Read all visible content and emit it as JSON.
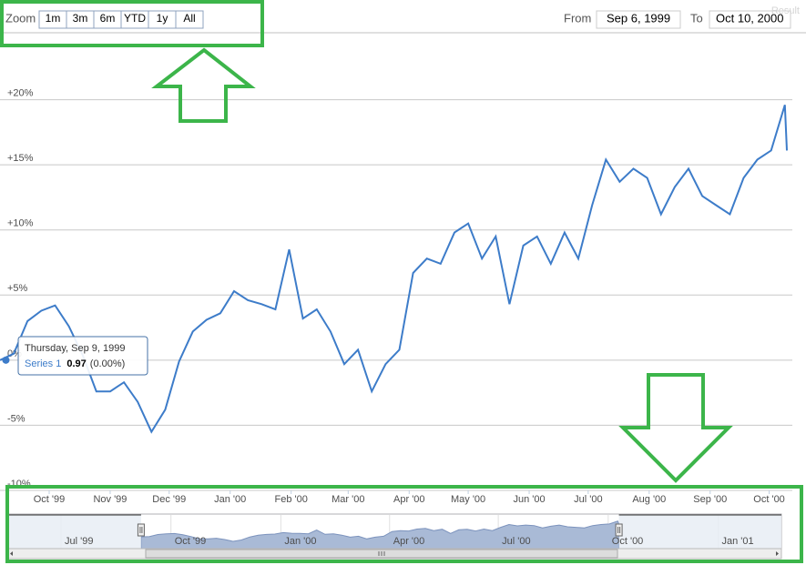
{
  "watermark": "Result",
  "range_selector": {
    "zoom_label": "Zoom",
    "buttons": [
      "1m",
      "3m",
      "6m",
      "YTD",
      "1y",
      "All"
    ],
    "from_label": "From",
    "from": "Sep 6, 1999",
    "to_label": "To",
    "to": "Oct 10, 2000"
  },
  "chart_data": {
    "type": "line",
    "x": [
      "1999-09-06",
      "1999-09-13",
      "1999-09-20",
      "1999-09-27",
      "1999-10-04",
      "1999-10-11",
      "1999-10-18",
      "1999-10-25",
      "1999-11-01",
      "1999-11-08",
      "1999-11-15",
      "1999-11-22",
      "1999-11-29",
      "1999-12-06",
      "1999-12-13",
      "1999-12-20",
      "1999-12-27",
      "2000-01-03",
      "2000-01-10",
      "2000-01-17",
      "2000-01-24",
      "2000-01-31",
      "2000-02-07",
      "2000-02-14",
      "2000-02-21",
      "2000-02-28",
      "2000-03-06",
      "2000-03-13",
      "2000-03-20",
      "2000-03-27",
      "2000-04-03",
      "2000-04-10",
      "2000-04-17",
      "2000-04-24",
      "2000-05-01",
      "2000-05-08",
      "2000-05-15",
      "2000-05-22",
      "2000-05-29",
      "2000-06-05",
      "2000-06-12",
      "2000-06-19",
      "2000-06-26",
      "2000-07-03",
      "2000-07-10",
      "2000-07-17",
      "2000-07-24",
      "2000-07-31",
      "2000-08-07",
      "2000-08-14",
      "2000-08-21",
      "2000-08-28",
      "2000-09-04",
      "2000-09-11",
      "2000-09-18",
      "2000-09-25",
      "2000-10-02",
      "2000-10-09",
      "2000-10-10"
    ],
    "series": [
      {
        "name": "Series 1",
        "color": "#3d7cc9",
        "values": [
          0,
          0.5,
          3,
          3.8,
          4.2,
          2.6,
          0.4,
          -2.4,
          -2.4,
          -1.7,
          -3.2,
          -5.5,
          -3.8,
          -0.1,
          2.2,
          3.1,
          3.6,
          5.3,
          4.6,
          4.3,
          3.9,
          8.5,
          3.2,
          3.9,
          2.2,
          -0.3,
          0.8,
          -2.4,
          -0.3,
          0.8,
          6.7,
          7.8,
          7.4,
          9.8,
          10.5,
          7.8,
          9.5,
          4.3,
          8.8,
          9.5,
          7.4,
          9.8,
          7.8,
          11.9,
          15.4,
          13.7,
          14.7,
          14,
          11.2,
          13.3,
          14.7,
          12.6,
          11.9,
          11.2,
          14,
          15.4,
          16.1,
          19.6,
          16.1
        ]
      }
    ],
    "xlim": [
      "1999-09-06",
      "2000-10-10"
    ],
    "xticks": [
      {
        "value": "1999-10-01",
        "label": "Oct '99"
      },
      {
        "value": "1999-11-01",
        "label": "Nov '99"
      },
      {
        "value": "1999-12-01",
        "label": "Dec '99"
      },
      {
        "value": "2000-01-01",
        "label": "Jan '00"
      },
      {
        "value": "2000-02-01",
        "label": "Feb '00"
      },
      {
        "value": "2000-03-01",
        "label": "Mar '00"
      },
      {
        "value": "2000-04-01",
        "label": "Apr '00"
      },
      {
        "value": "2000-05-01",
        "label": "May '00"
      },
      {
        "value": "2000-06-01",
        "label": "Jun '00"
      },
      {
        "value": "2000-07-01",
        "label": "Jul '00"
      },
      {
        "value": "2000-08-01",
        "label": "Aug '00"
      },
      {
        "value": "2000-09-01",
        "label": "Sep '00"
      },
      {
        "value": "2000-10-01",
        "label": "Oct '00"
      }
    ],
    "ylim": [
      -10,
      25
    ],
    "yticks": [
      {
        "value": -10,
        "label": "-10%"
      },
      {
        "value": -5,
        "label": "-5%"
      },
      {
        "value": 0,
        "label": "0%"
      },
      {
        "value": 5,
        "label": "+5%"
      },
      {
        "value": 10,
        "label": "+10%"
      },
      {
        "value": 15,
        "label": "+15%"
      },
      {
        "value": 20,
        "label": "+20%"
      }
    ],
    "grid": true,
    "navigator": {
      "xlim": [
        "1999-05-17",
        "2001-02-23"
      ],
      "xticks": [
        {
          "value": "1999-07-01",
          "label": "Jul '99"
        },
        {
          "value": "1999-10-01",
          "label": "Oct '99"
        },
        {
          "value": "2000-01-01",
          "label": "Jan '00"
        },
        {
          "value": "2000-04-01",
          "label": "Apr '00"
        },
        {
          "value": "2000-07-01",
          "label": "Jul '00"
        },
        {
          "value": "2000-10-01",
          "label": "Oct '00"
        },
        {
          "value": "2001-01-01",
          "label": "Jan '01"
        }
      ]
    },
    "tooltip": {
      "date": "Thursday, Sep 9, 1999",
      "x": "1999-09-09",
      "value": 0.97,
      "change": "(0.00%)"
    }
  }
}
